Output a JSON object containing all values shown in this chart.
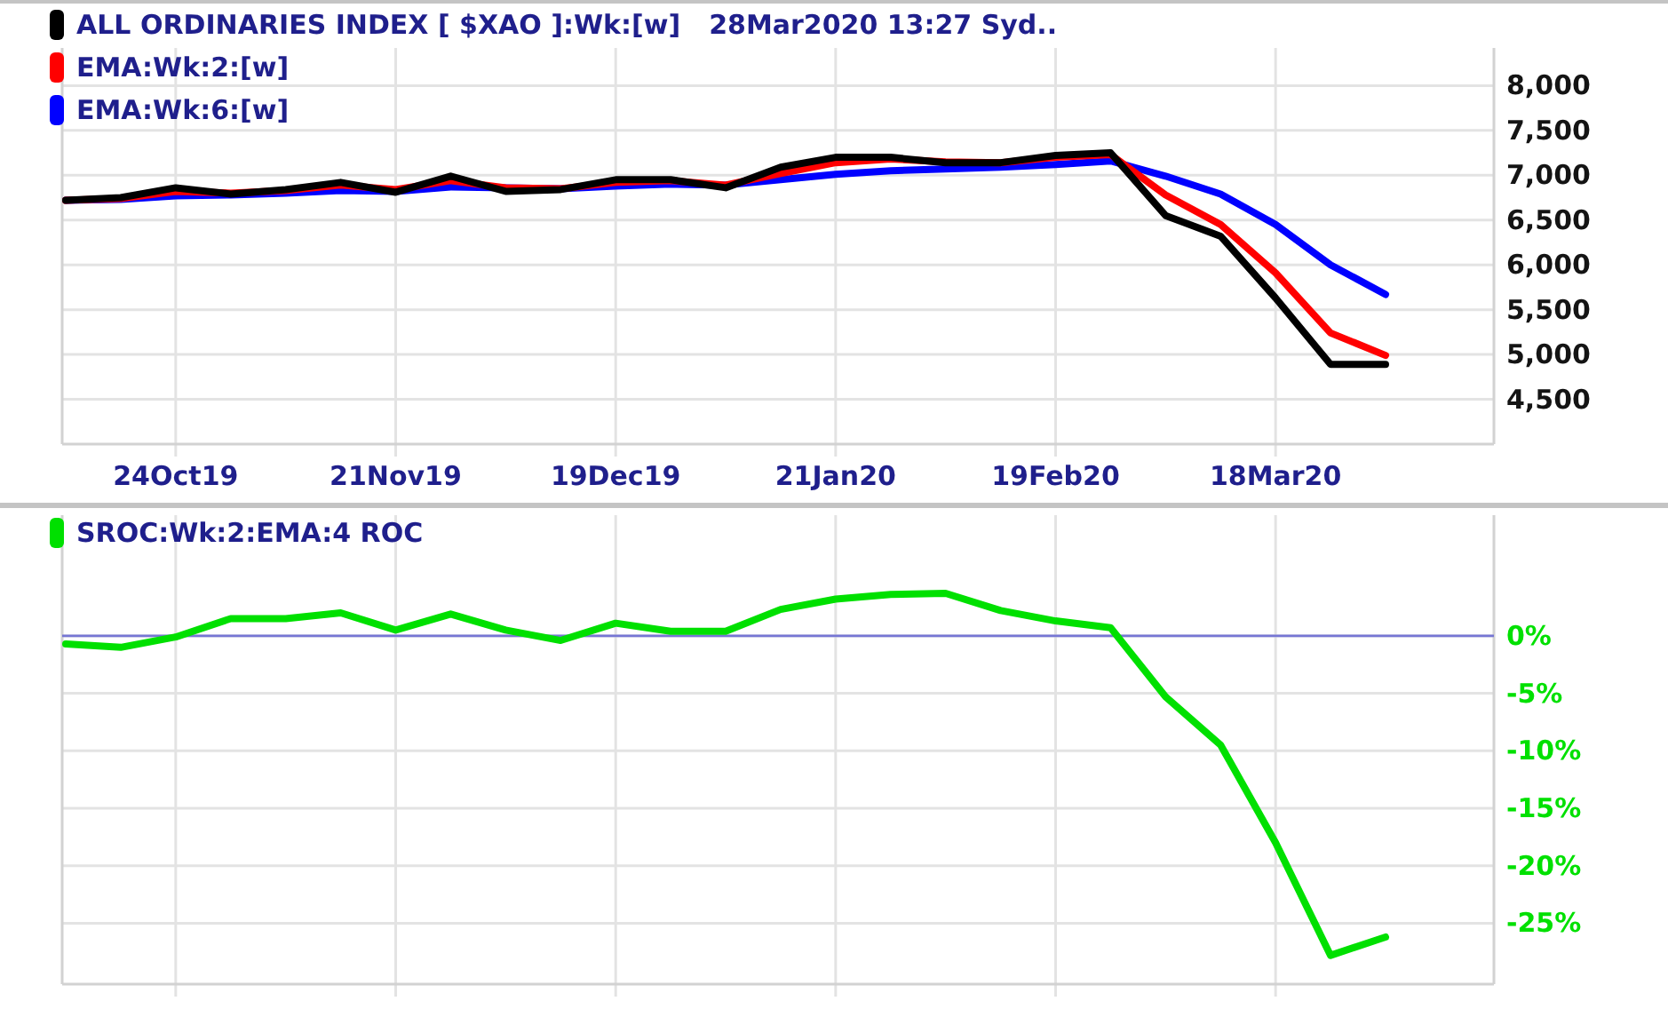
{
  "chart_data": [
    {
      "type": "line",
      "title": "28Mar2020 13:27 Syd..",
      "legend": "top left",
      "grid": true,
      "categories": [
        null,
        null,
        "24Oct19",
        null,
        null,
        null,
        "21Nov19",
        null,
        null,
        null,
        "19Dec19",
        null,
        null,
        null,
        "21Jan20",
        null,
        null,
        null,
        "19Feb20",
        null,
        null,
        null,
        "18Mar20",
        null,
        null
      ],
      "ylim": [
        4000,
        8420
      ],
      "yticks": [
        {
          "value": 4500,
          "label": "4,500"
        },
        {
          "value": 5000,
          "label": "5,000"
        },
        {
          "value": 5500,
          "label": "5,500"
        },
        {
          "value": 6000,
          "label": "6,000"
        },
        {
          "value": 6500,
          "label": "6,500"
        },
        {
          "value": 7000,
          "label": "7,000"
        },
        {
          "value": 7500,
          "label": "7,500"
        },
        {
          "value": 8000,
          "label": "8,000"
        }
      ],
      "series": [
        {
          "name": "ALL ORDINARIES INDEX [ $XAO ]:Wk:[w]",
          "color": "#000000",
          "values": [
            6720,
            6750,
            6860,
            6790,
            6840,
            6920,
            6810,
            6990,
            6820,
            6840,
            6950,
            6950,
            6860,
            7090,
            7200,
            7200,
            7140,
            7140,
            7220,
            7250,
            6550,
            6320,
            5630,
            4890,
            4890
          ]
        },
        {
          "name": "EMA:Wk:2:[w]",
          "color": "#ff0000",
          "values": [
            6720,
            6740,
            6820,
            6800,
            6830,
            6890,
            6840,
            6940,
            6860,
            6850,
            6920,
            6940,
            6890,
            7020,
            7140,
            7180,
            7150,
            7140,
            7200,
            7230,
            6780,
            6450,
            5910,
            5240,
            4990
          ]
        },
        {
          "name": "EMA:Wk:6:[w]",
          "color": "#0000ff",
          "values": [
            6720,
            6730,
            6770,
            6780,
            6800,
            6830,
            6820,
            6870,
            6860,
            6850,
            6880,
            6900,
            6890,
            6950,
            7010,
            7050,
            7070,
            7090,
            7120,
            7160,
            6990,
            6790,
            6450,
            6000,
            5670
          ]
        }
      ]
    },
    {
      "type": "line",
      "legend": "top left",
      "grid": true,
      "categories": [
        null,
        null,
        null,
        null,
        null,
        null,
        null,
        null,
        null,
        null,
        null,
        null,
        null,
        null,
        null,
        null,
        null,
        null,
        null,
        null,
        null,
        null,
        null,
        null,
        null
      ],
      "ylim": [
        -30.3,
        10.5
      ],
      "yticks": [
        {
          "value": 0,
          "label": "0%"
        },
        {
          "value": -5,
          "label": "-5%"
        },
        {
          "value": -10,
          "label": "-10%"
        },
        {
          "value": -15,
          "label": "-15%"
        },
        {
          "value": -20,
          "label": "-20%"
        },
        {
          "value": -25,
          "label": "-25%"
        }
      ],
      "ref_lines": [
        {
          "axis": "y",
          "value": 0,
          "color": "#7676d4"
        }
      ],
      "series": [
        {
          "name": "SROC:Wk:2:EMA:4 ROC",
          "color": "#00e000",
          "values": [
            -0.7,
            -1.0,
            -0.1,
            1.5,
            1.5,
            2.0,
            0.5,
            1.9,
            0.5,
            -0.4,
            1.1,
            0.4,
            0.4,
            2.3,
            3.2,
            3.6,
            3.7,
            2.2,
            1.3,
            0.7,
            -5.3,
            -9.5,
            -18.0,
            -27.8,
            -26.2
          ]
        }
      ]
    }
  ]
}
